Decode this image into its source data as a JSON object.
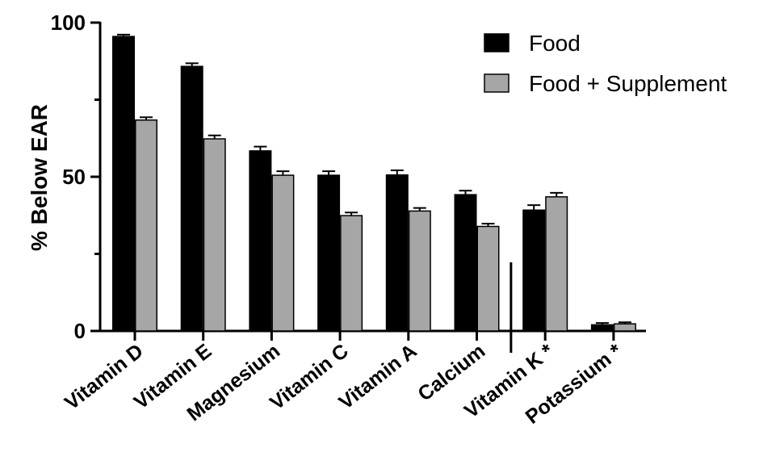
{
  "chart_data": {
    "type": "bar",
    "ylabel": "% Below EAR",
    "xlabel": "",
    "ylim": [
      0,
      100
    ],
    "yticks_labeled": [
      0,
      50,
      100
    ],
    "yticks_minor": [
      25,
      75
    ],
    "categories": [
      "Vitamin D",
      "Vitamin E",
      "Magnesium",
      "Vitamin C",
      "Vitamin A",
      "Calcium",
      "Vitamin K *",
      "Potassium *"
    ],
    "series": [
      {
        "name": "Food",
        "color": "#000000",
        "values": [
          95.5,
          85.8,
          58.4,
          50.5,
          50.6,
          44.2,
          39.2,
          2.0
        ],
        "errors": [
          0.6,
          1.0,
          1.4,
          1.3,
          1.5,
          1.3,
          1.6,
          0.6
        ]
      },
      {
        "name": "Food + Supplement",
        "color": "#a6a6a6",
        "values": [
          68.4,
          62.3,
          50.5,
          37.4,
          38.9,
          33.9,
          43.5,
          2.3
        ],
        "errors": [
          0.9,
          1.1,
          1.3,
          1.0,
          1.0,
          0.9,
          1.3,
          0.5
        ]
      }
    ],
    "separator_after_index": 5,
    "legend_position": "top-right",
    "grid": false
  }
}
